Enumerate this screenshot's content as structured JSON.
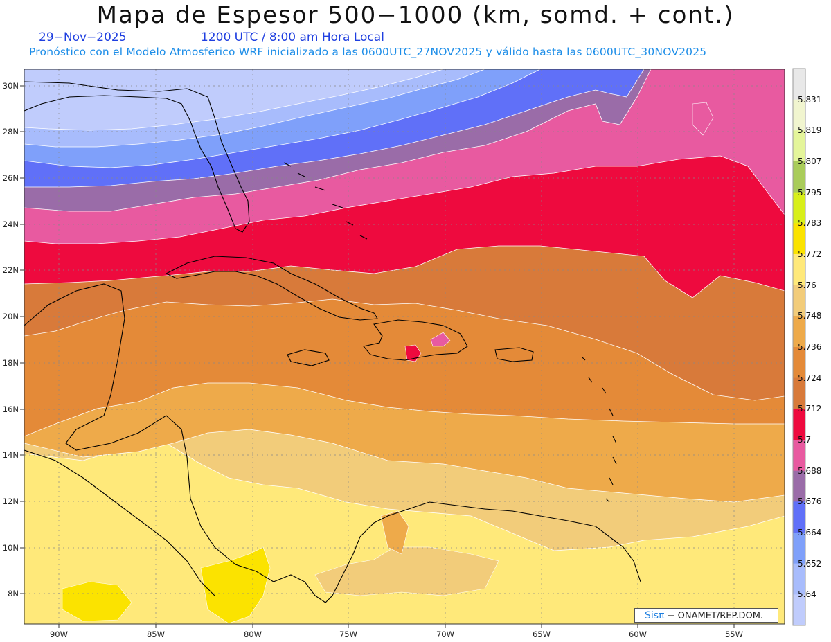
{
  "header": {
    "title": "Mapa de Espesor 500−1000 (km, somd. + cont.)",
    "date": "29−Nov−2025",
    "time": "1200 UTC / 8:00 am Hora Local",
    "subtitle": "Pronóstico con el Modelo Atmosferico WRF inicializado a las 0600UTC_27NOV2025 y válido hasta las  0600UTC_30NOV2025"
  },
  "map": {
    "variable": "Espesor 500-1000",
    "units": "km",
    "lon_range": [
      -92,
      -52.5
    ],
    "lat_range": [
      6.6,
      30.6
    ],
    "lon_ticks": [
      "90W",
      "85W",
      "80W",
      "75W",
      "70W",
      "65W",
      "60W",
      "55W"
    ],
    "lat_ticks": [
      "30N",
      "28N",
      "26N",
      "24N",
      "22N",
      "20N",
      "18N",
      "16N",
      "14N",
      "12N",
      "10N",
      "8N"
    ],
    "gridlines": true
  },
  "colorbar": {
    "labels": [
      "5.831",
      "5.819",
      "5.807",
      "5.795",
      "5.783",
      "5.772",
      "5.76",
      "5.748",
      "5.736",
      "5.724",
      "5.712",
      "5.7",
      "5.688",
      "5.676",
      "5.664",
      "5.652",
      "5.64"
    ],
    "colors": [
      "#e8e8e8",
      "#f1f5cf",
      "#e4f59a",
      "#a9cc5a",
      "#d8ef1a",
      "#fbe300",
      "#ffe97a",
      "#f2cc7a",
      "#eeaa4a",
      "#e48a38",
      "#d87a3a",
      "#ee0a3e",
      "#e85aa0",
      "#9a6ca8",
      "#6070f8",
      "#7fa0fa",
      "#a8bcfc",
      "#c0ccfc"
    ]
  },
  "watermark": {
    "logo": "Sisπ",
    "text": "− ONAMET/REP.DOM."
  }
}
